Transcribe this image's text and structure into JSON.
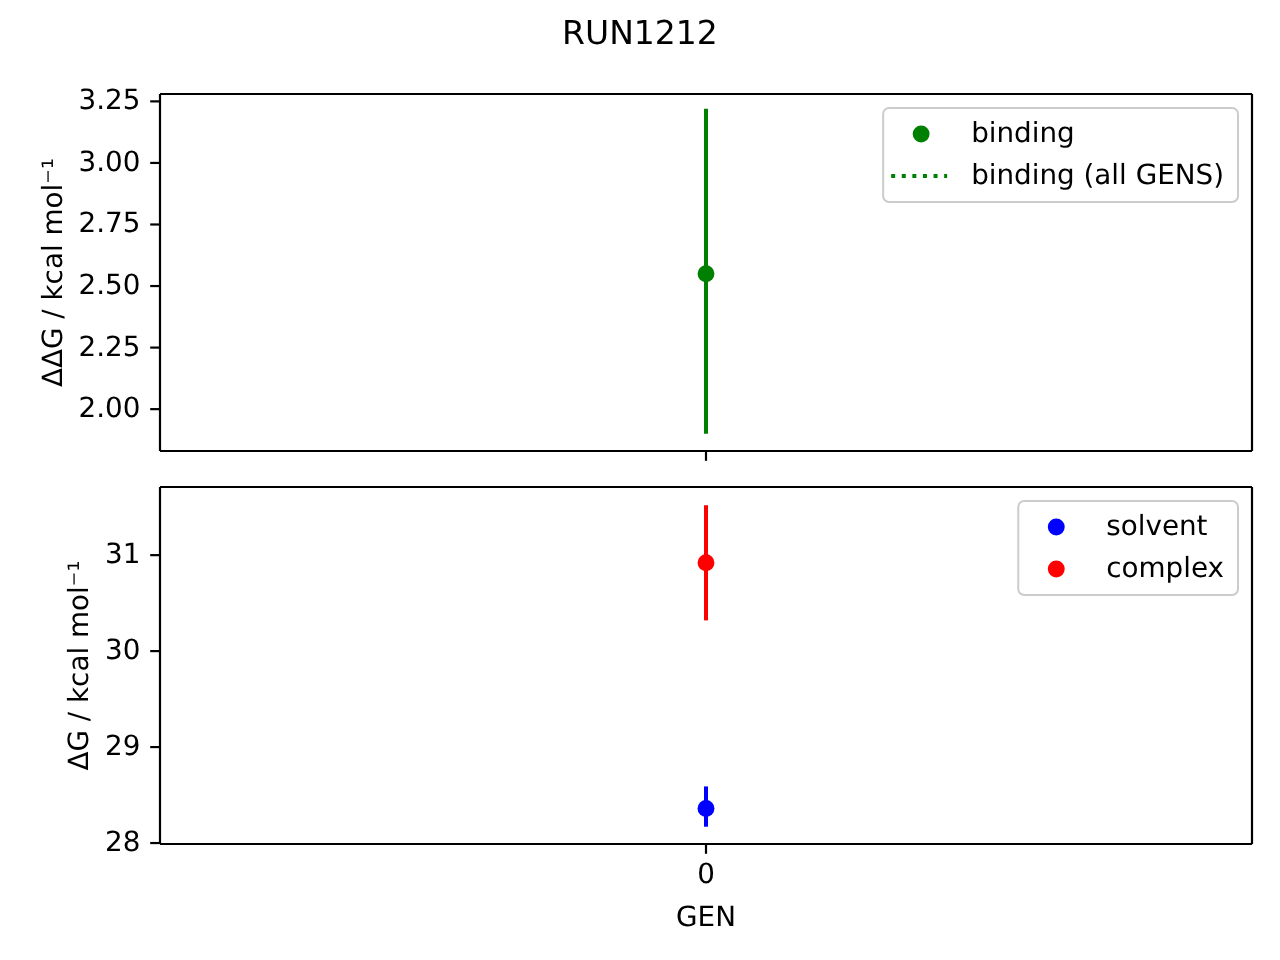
{
  "chart_data": [
    {
      "type": "scatter",
      "title": "RUN1212",
      "categories": [
        null
      ],
      "ylabel": "ΔΔG / kcal mol⁻¹",
      "ylim": [
        1.83,
        3.28
      ],
      "yticks": [
        {
          "value": 2,
          "label": "2.00"
        },
        2.25,
        {
          "value": 2.5,
          "label": "2.50"
        },
        2.75,
        {
          "value": 3,
          "label": "3.00"
        },
        3.25
      ],
      "tick_labels": "y",
      "legend": "top right",
      "marker": "circle",
      "series": [
        {
          "name": "binding",
          "color": "#008000",
          "values": [
            2.55
          ],
          "errors": [
            [
              1.9,
              3.22
            ]
          ]
        },
        {
          "name": "binding (all GENS)",
          "type": "line",
          "line_style": "dotted",
          "color": "#008000",
          "values": [
            null
          ]
        }
      ]
    },
    {
      "type": "scatter",
      "categories": [
        "0"
      ],
      "xlabel": "GEN",
      "ylabel": "ΔG / kcal mol⁻¹",
      "ylim": [
        27.99,
        31.71
      ],
      "yticks": [
        28,
        29,
        30,
        31
      ],
      "legend": "top right",
      "marker": "circle",
      "series": [
        {
          "name": "solvent",
          "color": "#0000ff",
          "values": [
            28.36
          ],
          "errors": [
            [
              28.17,
              28.59
            ]
          ]
        },
        {
          "name": "complex",
          "color": "#ff0000",
          "values": [
            30.92
          ],
          "errors": [
            [
              30.32,
              31.52
            ]
          ]
        }
      ]
    }
  ]
}
